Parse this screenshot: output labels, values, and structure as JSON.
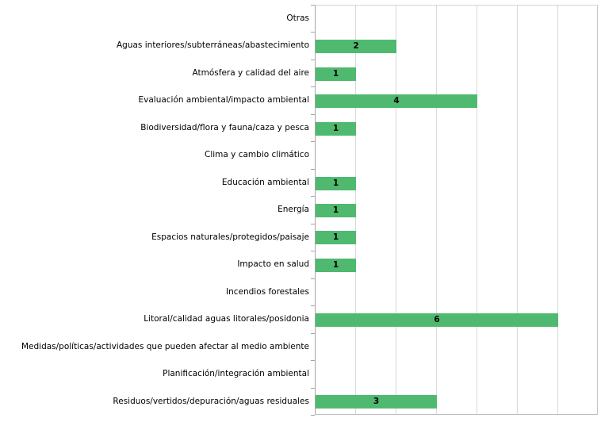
{
  "chart_data": {
    "type": "bar",
    "orientation": "horizontal",
    "title": "",
    "xlabel": "",
    "ylabel": "",
    "categories": [
      "Otras",
      "Aguas interiores/subterráneas/abastecimiento",
      "Atmósfera y calidad del aire",
      "Evaluación ambiental/impacto ambiental",
      "Biodiversidad/flora y fauna/caza y pesca",
      "Clima y cambio climático",
      "Educación ambiental",
      "Energía",
      "Espacios naturales/protegidos/paisaje",
      "Impacto en salud",
      "Incendios forestales",
      "Litoral/calidad aguas litorales/posidonia",
      "Medidas/políticas/actividades que pueden afectar al medio ambiente",
      "Planificación/integración ambiental",
      "Residuos/vertidos/depuración/aguas residuales"
    ],
    "values": [
      0,
      2,
      1,
      4,
      1,
      0,
      1,
      1,
      1,
      1,
      0,
      6,
      0,
      0,
      3
    ],
    "xlim": [
      0,
      7
    ],
    "gridline_interval": 1,
    "grid": true,
    "legend": "none",
    "value_labels": "shown centered inside bars, only for non-zero values",
    "colors": {
      "bar_fill": "#4FB96F",
      "gridline": "#D9D9D9",
      "axis_line": "#A6A6A6",
      "plot_border": "#C6C6C6",
      "label_text": "#000000",
      "value_text": "#000000",
      "background": "#FFFFFF"
    }
  }
}
